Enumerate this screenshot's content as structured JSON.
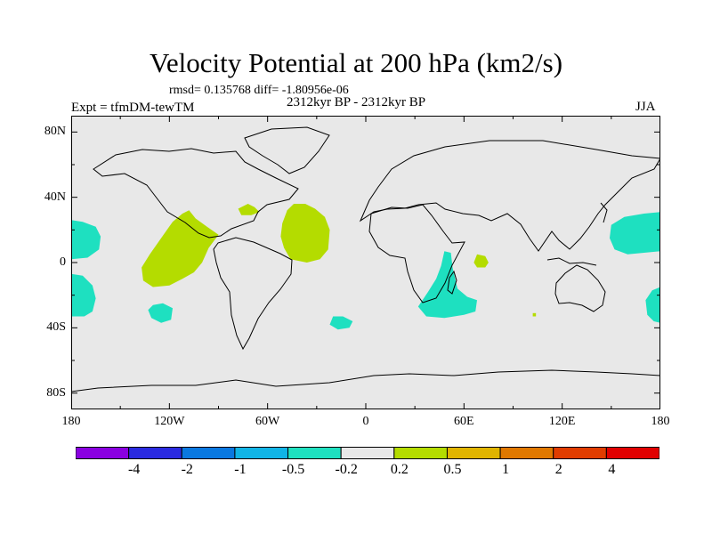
{
  "chart_data": {
    "type": "heatmap",
    "title": "Velocity Potential at 200 hPa (km2/s)",
    "stats_text": "rmsd= 0.135768 diff= -1.80956e-06",
    "experiment": "Expt = tfmDM-tewTM",
    "period": "2312kyr BP - 2312kyr BP",
    "season": "JJA",
    "projection": "cylindrical-equidistant",
    "xlim": [
      -180,
      180
    ],
    "ylim": [
      -90,
      90
    ],
    "x_ticks": [
      {
        "value": -180,
        "label": "180"
      },
      {
        "value": -120,
        "label": "120W"
      },
      {
        "value": -60,
        "label": "60W"
      },
      {
        "value": 0,
        "label": "0"
      },
      {
        "value": 60,
        "label": "60E"
      },
      {
        "value": 120,
        "label": "120E"
      },
      {
        "value": 180,
        "label": "180"
      }
    ],
    "y_ticks": [
      {
        "value": 80,
        "label": "80N"
      },
      {
        "value": 40,
        "label": "40N"
      },
      {
        "value": 0,
        "label": "0"
      },
      {
        "value": -40,
        "label": "40S"
      },
      {
        "value": -80,
        "label": "80S"
      }
    ],
    "colorbar": {
      "levels": [
        -4,
        -2,
        -1,
        -0.5,
        -0.2,
        0.2,
        0.5,
        1,
        2,
        4
      ],
      "level_labels": [
        "-4",
        "-2",
        "-1",
        "-0.5",
        "-0.2",
        "0.2",
        "0.5",
        "1",
        "2",
        "4"
      ],
      "colors": [
        "#8a00e0",
        "#2a2ae0",
        "#0a78e0",
        "#10b4e6",
        "#1ee0c0",
        "#e8e8e8",
        "#b4dc00",
        "#e0b400",
        "#e07800",
        "#e03c00",
        "#e00000"
      ]
    },
    "background_color": "#e8e8e8",
    "regions": [
      {
        "level_color": "#1ee0c0",
        "label": "-0.5 to -0.2",
        "points": [
          [
            -180,
            26
          ],
          [
            -173,
            25
          ],
          [
            -165,
            22
          ],
          [
            -162,
            16
          ],
          [
            -163,
            8
          ],
          [
            -170,
            3
          ],
          [
            -180,
            2
          ]
        ]
      },
      {
        "level_color": "#1ee0c0",
        "label": "-0.5 to -0.2",
        "points": [
          [
            -180,
            -7
          ],
          [
            -173,
            -8
          ],
          [
            -167,
            -14
          ],
          [
            -165,
            -22
          ],
          [
            -167,
            -30
          ],
          [
            -172,
            -33
          ],
          [
            -180,
            -33
          ]
        ]
      },
      {
        "level_color": "#1ee0c0",
        "label": "-0.5 to -0.2",
        "points": [
          [
            -130,
            -26
          ],
          [
            -124,
            -25
          ],
          [
            -118,
            -28
          ],
          [
            -119,
            -35
          ],
          [
            -125,
            -37
          ],
          [
            -131,
            -34
          ],
          [
            -133,
            -29
          ]
        ]
      },
      {
        "level_color": "#1ee0c0",
        "label": "-0.5 to -0.2",
        "points": [
          [
            -20,
            -33
          ],
          [
            -14,
            -33
          ],
          [
            -8,
            -36
          ],
          [
            -10,
            -40
          ],
          [
            -17,
            -41
          ],
          [
            -22,
            -38
          ]
        ]
      },
      {
        "level_color": "#1ee0c0",
        "label": "-0.5 to -0.2",
        "points": [
          [
            48,
            7
          ],
          [
            52,
            6
          ],
          [
            53,
            -3
          ],
          [
            56,
            -16
          ],
          [
            62,
            -21
          ],
          [
            68,
            -23
          ],
          [
            67,
            -30
          ],
          [
            60,
            -32
          ],
          [
            48,
            -34
          ],
          [
            37,
            -33
          ],
          [
            32,
            -27
          ],
          [
            38,
            -18
          ],
          [
            43,
            -10
          ],
          [
            46,
            -2
          ]
        ]
      },
      {
        "level_color": "#1ee0c0",
        "label": "-0.5 to -0.2",
        "points": [
          [
            180,
            31
          ],
          [
            170,
            30
          ],
          [
            158,
            28
          ],
          [
            150,
            23
          ],
          [
            149,
            15
          ],
          [
            152,
            8
          ],
          [
            160,
            5
          ],
          [
            170,
            6
          ],
          [
            180,
            7
          ]
        ]
      },
      {
        "level_color": "#1ee0c0",
        "label": "-0.5 to -0.2",
        "points": [
          [
            180,
            -15
          ],
          [
            175,
            -17
          ],
          [
            171,
            -23
          ],
          [
            172,
            -32
          ],
          [
            176,
            -36
          ],
          [
            180,
            -37
          ]
        ]
      },
      {
        "level_color": "#b4dc00",
        "label": "0.2 to 0.5",
        "points": [
          [
            -108,
            32
          ],
          [
            -104,
            27
          ],
          [
            -97,
            22
          ],
          [
            -90,
            17
          ],
          [
            -96,
            9
          ],
          [
            -100,
            0
          ],
          [
            -105,
            -6
          ],
          [
            -112,
            -10
          ],
          [
            -120,
            -14
          ],
          [
            -130,
            -15
          ],
          [
            -136,
            -11
          ],
          [
            -137,
            -3
          ],
          [
            -132,
            5
          ],
          [
            -125,
            15
          ],
          [
            -118,
            25
          ],
          [
            -112,
            30
          ]
        ]
      },
      {
        "level_color": "#b4dc00",
        "label": "0.2 to 0.5",
        "points": [
          [
            -72,
            36
          ],
          [
            -68,
            34
          ],
          [
            -65,
            31
          ],
          [
            -70,
            29
          ],
          [
            -76,
            29
          ],
          [
            -78,
            33
          ]
        ]
      },
      {
        "level_color": "#b4dc00",
        "label": "0.2 to 0.5",
        "points": [
          [
            -44,
            36
          ],
          [
            -37,
            36
          ],
          [
            -31,
            33
          ],
          [
            -25,
            28
          ],
          [
            -22,
            20
          ],
          [
            -23,
            8
          ],
          [
            -28,
            2
          ],
          [
            -36,
            0
          ],
          [
            -46,
            2
          ],
          [
            -50,
            9
          ],
          [
            -52,
            16
          ],
          [
            -51,
            24
          ],
          [
            -48,
            32
          ]
        ]
      },
      {
        "level_color": "#b4dc00",
        "label": "0.2 to 0.5",
        "points": [
          [
            68,
            5
          ],
          [
            73,
            4
          ],
          [
            75,
            0
          ],
          [
            73,
            -3
          ],
          [
            68,
            -3
          ],
          [
            66,
            0
          ]
        ]
      },
      {
        "level_color": "#b4dc00",
        "label": "0.2 to 0.5",
        "points": [
          [
            102,
            -31
          ],
          [
            104,
            -31
          ],
          [
            104,
            -33
          ],
          [
            102,
            -33
          ]
        ]
      }
    ]
  }
}
